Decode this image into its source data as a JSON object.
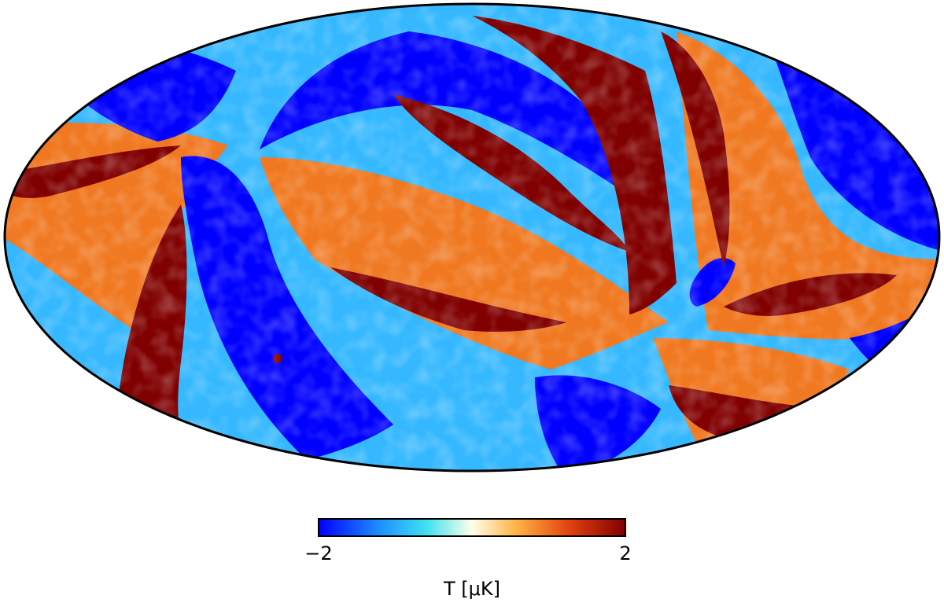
{
  "chart_data": {
    "type": "heatmap",
    "projection": "mollweide",
    "title": "",
    "colorbar": {
      "label": "T [μK]",
      "ticks": [
        {
          "value": -2,
          "label": "−2"
        },
        {
          "value": 2,
          "label": "2"
        }
      ],
      "range": [
        -2,
        2
      ],
      "orientation": "horizontal",
      "placement": "bottom-center",
      "colormap": [
        "#0000ff",
        "#1e90ff",
        "#40e0f0",
        "#ffffe8",
        "#ffb040",
        "#e04010",
        "#800000"
      ]
    },
    "features": [
      {
        "name": "positive-band-upper-right",
        "value": 2
      },
      {
        "name": "positive-band-center",
        "value": 2
      },
      {
        "name": "positive-band-lower-left",
        "value": 2
      },
      {
        "name": "positive-band-lower-right",
        "value": 2
      },
      {
        "name": "negative-band-top",
        "value": -2
      },
      {
        "name": "negative-band-left",
        "value": -2
      },
      {
        "name": "negative-band-lower-center",
        "value": -2
      },
      {
        "name": "negative-region-right",
        "value": -2
      }
    ],
    "colors": {
      "background": "#ffffff",
      "outline": "#000000",
      "deep_blue": "#0000ff",
      "light_blue": "#35b8ff",
      "cyan": "#40e0f0",
      "orange": "#f07820",
      "dark_red": "#800000"
    }
  }
}
